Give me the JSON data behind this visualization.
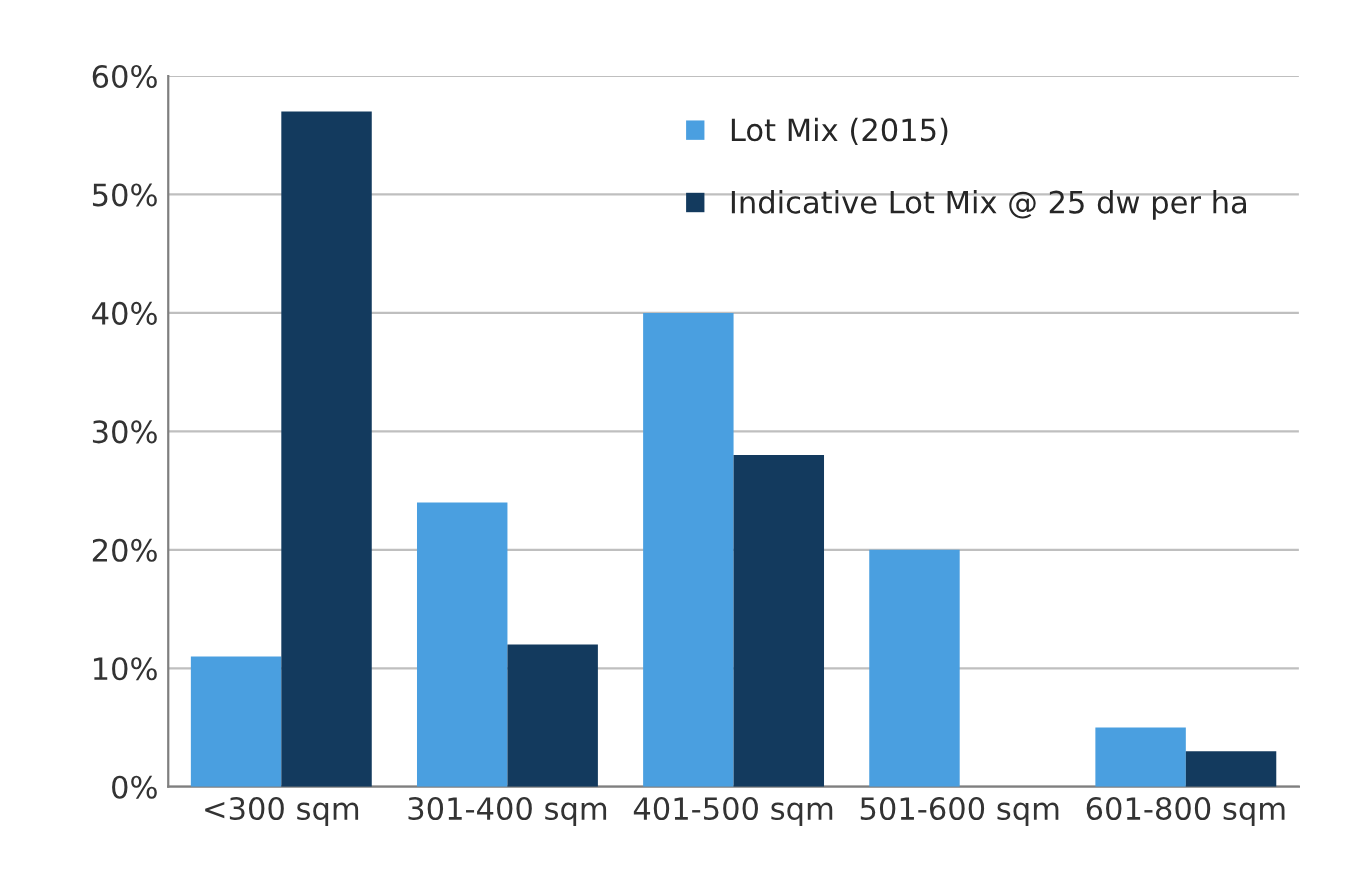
{
  "chart_data": {
    "type": "bar",
    "categories": [
      "<300 sqm",
      "301-400 sqm",
      "401-500 sqm",
      "501-600 sqm",
      "601-800 sqm"
    ],
    "series": [
      {
        "name": "Lot Mix (2015)",
        "color": "#4a9fe0",
        "values": [
          11,
          24,
          40,
          20,
          5
        ]
      },
      {
        "name": "Indicative Lot Mix @ 25 dw per ha",
        "color": "#133a5e",
        "values": [
          57,
          12,
          28,
          null,
          3
        ]
      }
    ],
    "ylim": [
      0,
      60
    ],
    "yticks": [
      {
        "value": 0,
        "label": "0%"
      },
      {
        "value": 10,
        "label": "10%"
      },
      {
        "value": 20,
        "label": "20%"
      },
      {
        "value": 30,
        "label": "30%"
      },
      {
        "value": 40,
        "label": "40%"
      },
      {
        "value": 50,
        "label": "50%"
      },
      {
        "value": 60,
        "label": "60%"
      }
    ],
    "grid": "y",
    "legend": "top right"
  }
}
